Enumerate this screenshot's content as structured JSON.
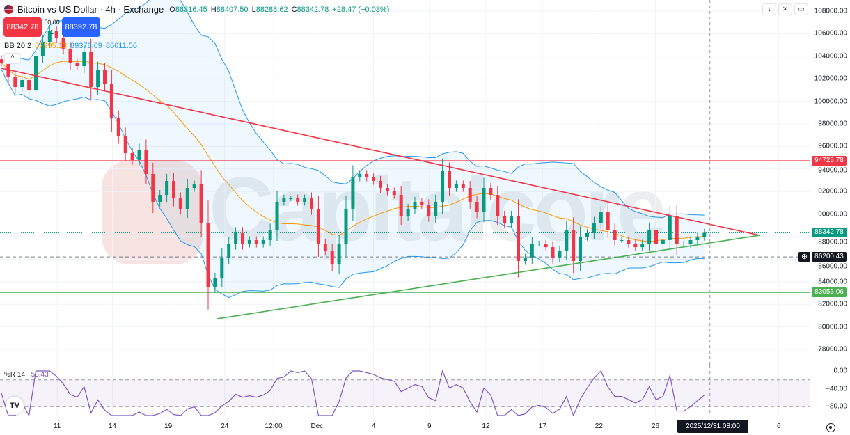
{
  "header": {
    "title": "Bitcoin vs US Dollar · 4h · Exchange",
    "open_label": "O",
    "open": "88316.45",
    "high_label": "H",
    "high": "88407.50",
    "low_label": "L",
    "low": "88288.62",
    "close_label": "C",
    "close": "88342.78",
    "change": "+28.47 (+0.03%)"
  },
  "trade": {
    "sell_price": "88342.78",
    "buy_price": "88392.78",
    "spread": "50.00",
    "quantity": "1"
  },
  "bb_legend": {
    "name": "BB 20 2",
    "basis": "87995.13",
    "upper": "89378.69",
    "lower": "86611.56"
  },
  "toolbar": {
    "collapse_icon": "chevron-up-icon",
    "buttons": [
      "arrow-down-icon",
      "collapse-icon",
      "fullscreen-icon"
    ]
  },
  "watermark": "Capitalcore",
  "colors": {
    "up": "#089981",
    "down": "#f23645",
    "bb_band": "#2196f3",
    "bb_basis": "#ff9800",
    "resistance": "#f23645",
    "support": "#4caf50",
    "wr": "#7e57c2"
  },
  "oscillator": {
    "name": "%R 14",
    "value": "−53.43",
    "ticks": [
      "0.00",
      "−40.00",
      "−80.00"
    ]
  },
  "crosshair_label": "2025/12/31   08:00",
  "chart_data": {
    "type": "candlestick",
    "price_ticks": [
      108000,
      106000,
      104000,
      102000,
      100000,
      98000,
      96000,
      94000,
      92000,
      90000,
      88000,
      86000,
      84000,
      82000,
      80000,
      78000
    ],
    "ylim": [
      77000,
      108500
    ],
    "x_ticks": [
      {
        "label": "11",
        "i": 8.1
      },
      {
        "label": "14",
        "i": 16.1
      },
      {
        "label": "19",
        "i": 24.2
      },
      {
        "label": "24",
        "i": 32.4
      },
      {
        "label": "12:00",
        "i": 39.5
      },
      {
        "label": "Dec",
        "i": 45.8
      },
      {
        "label": "4",
        "i": 54
      },
      {
        "label": "9",
        "i": 62.1
      },
      {
        "label": "12",
        "i": 70.3
      },
      {
        "label": "17",
        "i": 78.5
      },
      {
        "label": "22",
        "i": 86.7
      },
      {
        "label": "26",
        "i": 94.9
      },
      {
        "label": "6",
        "i": 112.8
      }
    ],
    "closes": [
      103430,
      102200,
      101270,
      101890,
      100960,
      104050,
      105280,
      106210,
      105590,
      104670,
      103430,
      103120,
      104360,
      101270,
      102810,
      101580,
      98490,
      96950,
      95410,
      94790,
      95720,
      93560,
      91090,
      91700,
      92940,
      91390,
      90470,
      92320,
      92630,
      89230,
      83500,
      84300,
      86150,
      87380,
      88310,
      87380,
      87690,
      87380,
      87690,
      88620,
      91090,
      91390,
      91390,
      91090,
      91390,
      90470,
      87380,
      86760,
      85530,
      87380,
      90470,
      93250,
      93560,
      93250,
      92940,
      92320,
      92010,
      91700,
      89850,
      90470,
      91090,
      90780,
      89850,
      91090,
      93860,
      92320,
      92630,
      92320,
      91090,
      90160,
      92320,
      91700,
      89850,
      89230,
      89850,
      85840,
      86150,
      87380,
      87380,
      87070,
      86150,
      86760,
      88620,
      85840,
      88000,
      88310,
      89230,
      90160,
      88620,
      87690,
      87690,
      87380,
      87070,
      87380,
      88620,
      87380,
      87690,
      89850,
      87380,
      87380,
      87690,
      88000,
      88342.78
    ],
    "indicators": {
      "bollinger": {
        "period": 20,
        "mult": 2
      },
      "williams_r": {
        "period": 14,
        "levels": [
          -20,
          -80
        ]
      }
    },
    "levels": [
      {
        "label": "94725.78",
        "value": 94725.78,
        "color": "#f23645"
      },
      {
        "label": "83053.06",
        "value": 83053.06,
        "color": "#4caf50"
      }
    ],
    "marked_price": {
      "label": "86200.43",
      "value": 86200.43
    },
    "last_price": {
      "label": "88342.78",
      "value": 88342.78,
      "color": "#089981"
    },
    "trendlines": [
      {
        "name": "descending resistance",
        "color": "#f23645",
        "from": [
          0,
          102940
        ],
        "to": [
          110,
          88120
        ]
      },
      {
        "name": "ascending support",
        "color": "#4caf50",
        "from": [
          31.3,
          80720
        ],
        "to": [
          110,
          88120
        ]
      }
    ],
    "crosshair_i": 102.8
  }
}
